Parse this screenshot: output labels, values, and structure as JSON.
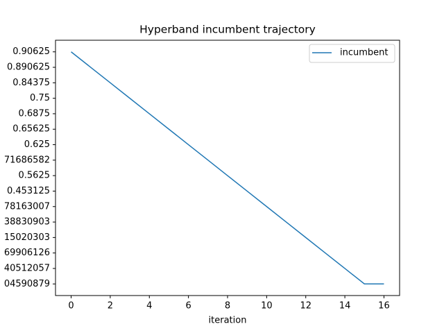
{
  "chart_data": {
    "type": "line",
    "title": "Hyperband incumbent trajectory",
    "xlabel": "iteration",
    "x": [
      0,
      1,
      2,
      3,
      4,
      5,
      6,
      7,
      8,
      9,
      10,
      11,
      12,
      13,
      14,
      15,
      16
    ],
    "xlim": [
      -0.8,
      16.8
    ],
    "xticks": [
      0,
      2,
      4,
      6,
      8,
      10,
      12,
      14,
      16
    ],
    "ycategories": [
      "0.90625",
      "0.890625",
      "0.84375",
      "0.75",
      "0.6875",
      "0.65625",
      "0.625",
      "71686582",
      "0.5625",
      "0.453125",
      "78163007",
      "38830903",
      "15020303",
      "69906126",
      "40512057",
      "04590879"
    ],
    "series": [
      {
        "name": "incumbent",
        "color": "#1f77b4",
        "values": [
          "0.90625",
          "0.890625",
          "0.84375",
          "0.75",
          "0.6875",
          "0.65625",
          "0.625",
          "71686582",
          "0.5625",
          "0.453125",
          "78163007",
          "38830903",
          "15020303",
          "69906126",
          "40512057",
          "04590879",
          "04590879"
        ]
      }
    ],
    "legend": "upper right"
  }
}
